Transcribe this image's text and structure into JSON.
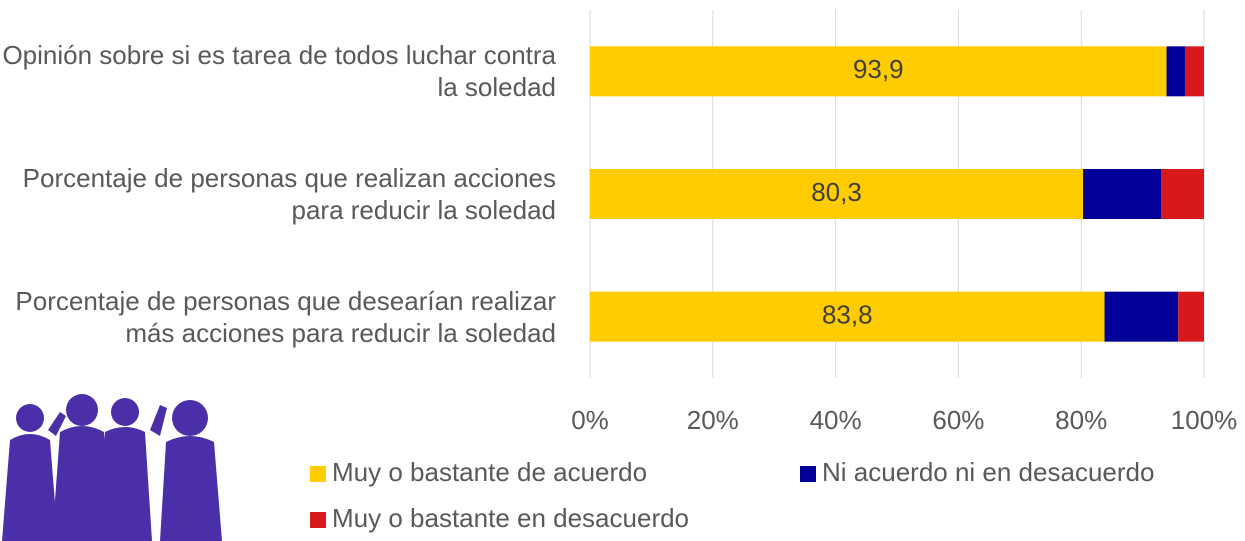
{
  "chart_data": {
    "type": "stacked_barh",
    "categories": [
      "Opinión sobre si es tarea de todos luchar contra la soledad",
      "Porcentaje de personas que realizan acciones para reducir la soledad",
      "Porcentaje de personas que desearían realizar más acciones para reducir la soledad"
    ],
    "series": [
      {
        "name": "Muy o bastante de acuerdo",
        "color": "#ffcc00",
        "values": [
          93.9,
          80.3,
          83.8
        ],
        "value_labels": [
          "93,9",
          "80,3",
          "83,8"
        ]
      },
      {
        "name": "Ni acuerdo ni en desacuerdo",
        "color": "#000099",
        "values": [
          3.0,
          12.7,
          12.0
        ]
      },
      {
        "name": "Muy o bastante en desacuerdo",
        "color": "#d7191c",
        "values": [
          3.1,
          7.0,
          4.2
        ]
      }
    ],
    "xlim": [
      0,
      100
    ],
    "xticks": [
      {
        "value": 0,
        "label": "0%"
      },
      {
        "value": 20,
        "label": "20%"
      },
      {
        "value": 40,
        "label": "40%"
      },
      {
        "value": 60,
        "label": "60%"
      },
      {
        "value": 80,
        "label": "80%"
      },
      {
        "value": 100,
        "label": "100%"
      }
    ],
    "grid": true,
    "legend": "bottom"
  }
}
